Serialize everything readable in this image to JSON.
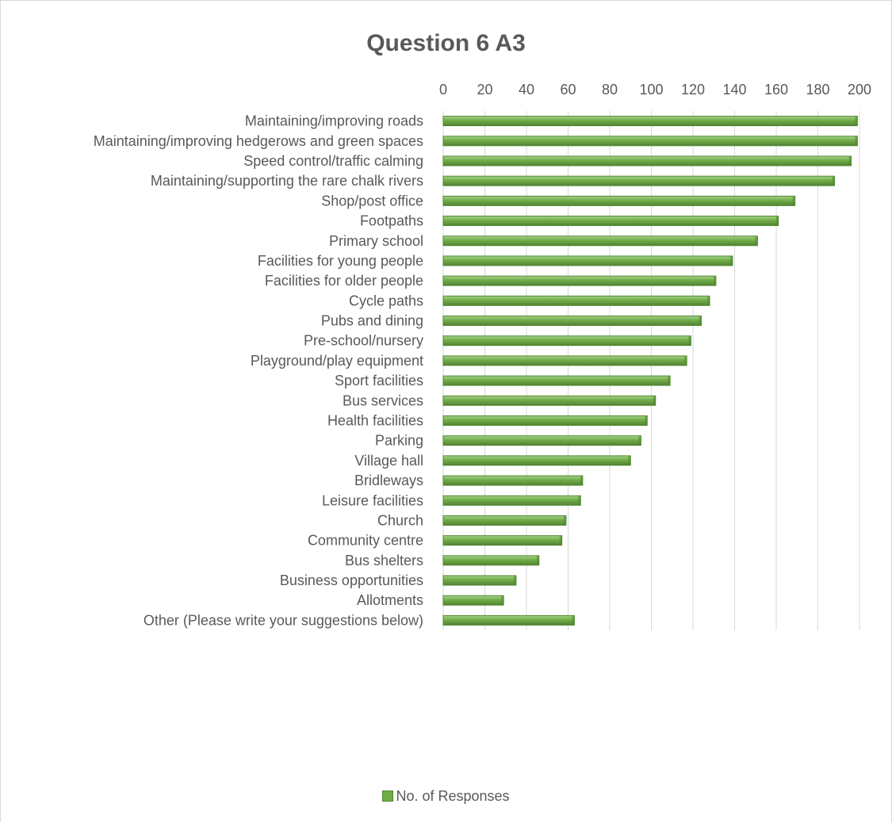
{
  "chart_data": {
    "type": "bar",
    "orientation": "horizontal",
    "title": "Question 6 A3",
    "xlim": [
      0,
      200
    ],
    "x_ticks": [
      0,
      20,
      40,
      60,
      80,
      100,
      120,
      140,
      160,
      180,
      200
    ],
    "x_axis_position": "top",
    "grid": true,
    "legend_position": "bottom",
    "bar_color": "#70ad47",
    "categories": [
      "Maintaining/improving roads",
      "Maintaining/improving hedgerows and green spaces",
      "Speed control/traffic calming",
      "Maintaining/supporting the rare chalk rivers",
      "Shop/post office",
      "Footpaths",
      "Primary school",
      "Facilities for young people",
      "Facilities for older people",
      "Cycle paths",
      "Pubs and dining",
      "Pre-school/nursery",
      "Playground/play equipment",
      "Sport facilities",
      "Bus services",
      "Health facilities",
      "Parking",
      "Village hall",
      "Bridleways",
      "Leisure facilities",
      "Church",
      "Community centre",
      "Bus shelters",
      "Business opportunities",
      "Allotments",
      "Other (Please write your suggestions below)"
    ],
    "series": [
      {
        "name": "No. of Responses",
        "values": [
          199,
          199,
          196,
          188,
          169,
          161,
          151,
          139,
          131,
          128,
          124,
          119,
          117,
          109,
          102,
          98,
          95,
          90,
          67,
          66,
          59,
          57,
          46,
          35,
          29,
          63
        ]
      }
    ]
  }
}
